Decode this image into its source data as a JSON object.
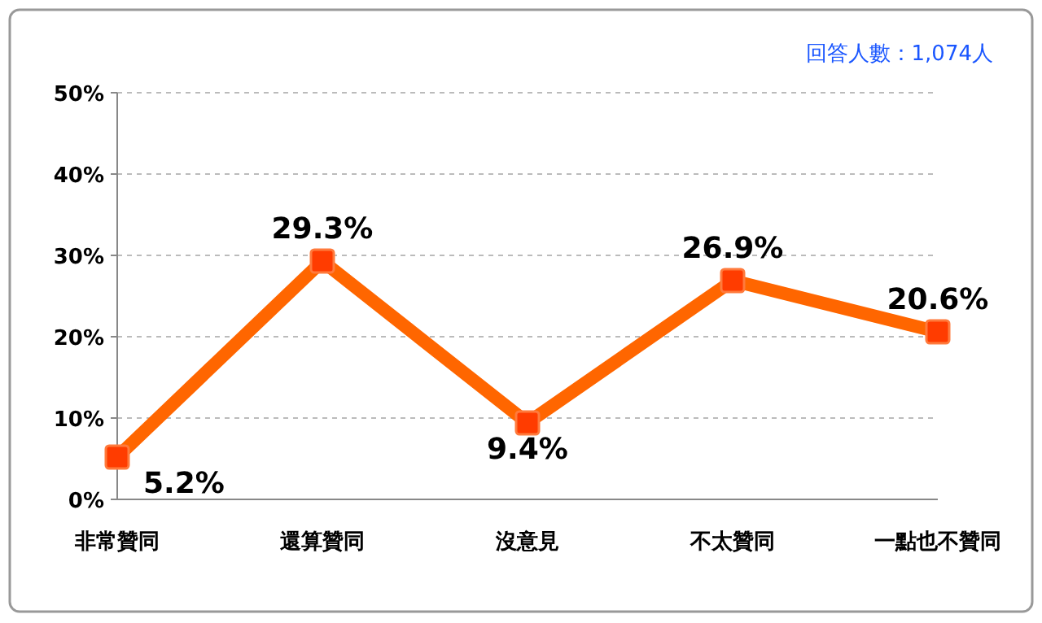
{
  "chart_data": {
    "type": "line",
    "categories": [
      "非常贊同",
      "還算贊同",
      "沒意見",
      "不太贊同",
      "一點也不贊同"
    ],
    "series": [
      {
        "color": "#ff6600",
        "values": [
          5.2,
          29.3,
          9.4,
          26.9,
          20.6
        ],
        "value_labels": [
          "5.2%",
          "29.3%",
          "9.4%",
          "26.9%",
          "20.6%"
        ]
      }
    ],
    "ylim": [
      0,
      50
    ],
    "yticks": [
      {
        "value": 0,
        "label": "0%"
      },
      {
        "value": 10,
        "label": "10%"
      },
      {
        "value": 20,
        "label": "20%"
      },
      {
        "value": 30,
        "label": "30%"
      },
      {
        "value": 40,
        "label": "40%"
      },
      {
        "value": 50,
        "label": "50%"
      }
    ],
    "grid": "y",
    "marker": "square",
    "line_style": "solid",
    "annotations": [
      "回答人數：1,074人"
    ]
  }
}
